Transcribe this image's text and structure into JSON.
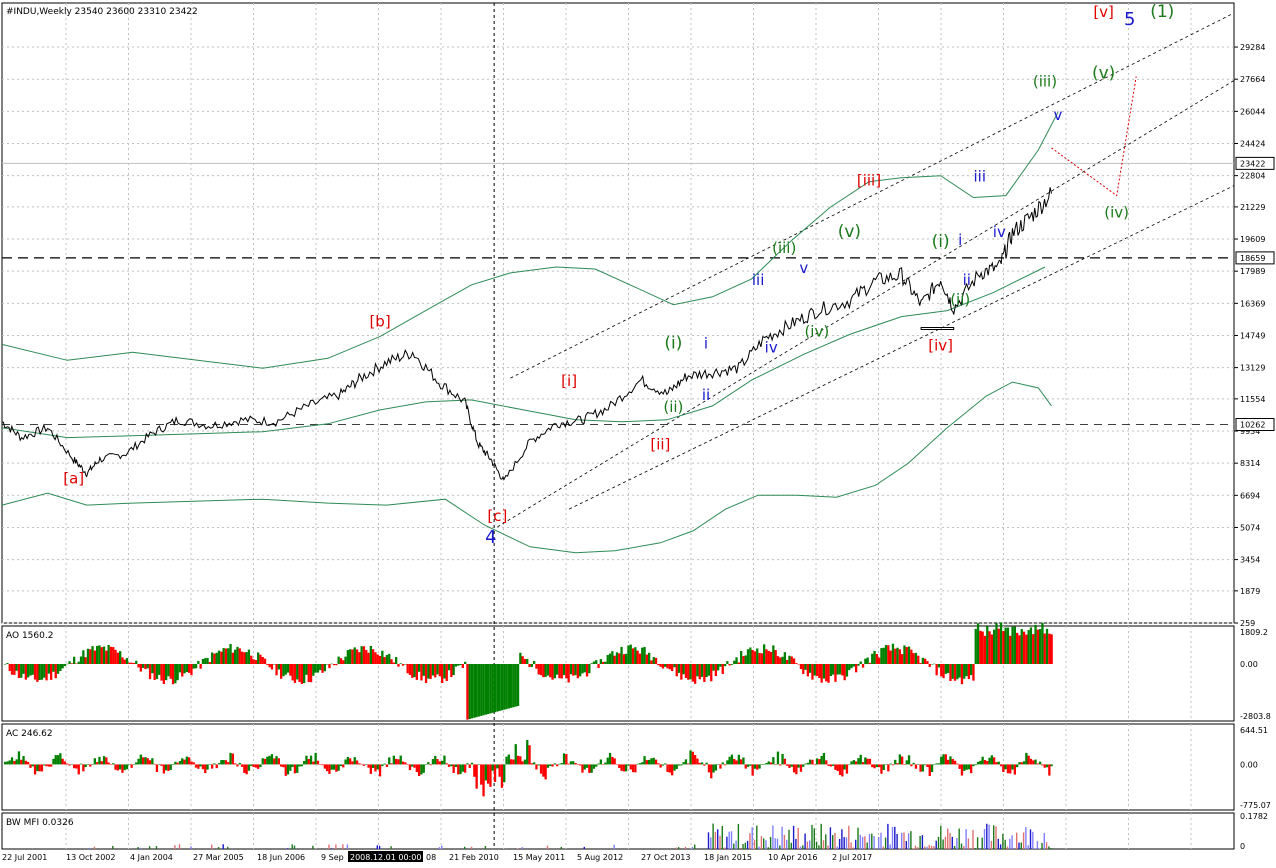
{
  "chart_data": [
    {
      "type": "line",
      "panel": "main",
      "symbol_header": "#INDU,Weekly  23540 23600 23310 23422",
      "scale": "log",
      "ylim": [
        259,
        32000
      ],
      "y_ticks": [
        "29284",
        "27664",
        "26044",
        "24424",
        "22804",
        "21229",
        "19609",
        "17989",
        "16369",
        "14749",
        "13129",
        "11554",
        "9934",
        "8314",
        "6694",
        "5074",
        "3454",
        "1879",
        "259"
      ],
      "price_tags": [
        "23422",
        "18659",
        "10262"
      ],
      "horizontal_levels": [
        18659,
        10262
      ],
      "x_ticks": [
        "22 Jul 2001",
        "13 Oct 2002",
        "4 Jan 2004",
        "27 Mar 2005",
        "18 Jun 2006",
        "9 Sep",
        "2008.12.01 00:00",
        "08",
        "21 Feb 2010",
        "15 May 2011",
        "5 Aug 2012",
        "27 Oct 2013",
        "18 Jan 2015",
        "10 Apr 2016",
        "2 Jul 2017"
      ],
      "crosshair_label": "2008.12.01 00:00",
      "series": [
        {
          "color": "#000000",
          "x": [
            2001.5,
            2001.8,
            2002.2,
            2002.6,
            2002.8,
            2003.0,
            2003.4,
            2003.8,
            2004.2,
            2004.7,
            2005.2,
            2005.7,
            2006.2,
            2006.7,
            2007.0,
            2007.4,
            2007.8,
            2008.2,
            2008.6,
            2008.8,
            2009.0,
            2009.2,
            2009.6,
            2010.0,
            2010.4,
            2010.8,
            2011.3,
            2011.7,
            2012.0,
            2012.4,
            2012.8,
            2013.2,
            2013.6,
            2014.0,
            2014.5,
            2014.9,
            2015.3,
            2015.6,
            2015.9,
            2016.1,
            2016.5,
            2016.8,
            2017.0,
            2017.3,
            2017.6
          ],
          "values": [
            10400,
            9600,
            10100,
            8500,
            7800,
            8500,
            8800,
            9800,
            10500,
            10200,
            10500,
            10400,
            11200,
            11800,
            12600,
            13400,
            13900,
            12400,
            11400,
            9300,
            8500,
            7400,
            9400,
            10300,
            10500,
            11100,
            12500,
            11800,
            12700,
            12900,
            13100,
            14600,
            15300,
            16000,
            16500,
            17500,
            17800,
            16300,
            17600,
            16100,
            17900,
            18200,
            19900,
            20800,
            21900
          ]
        }
      ],
      "wave_labels": [
        {
          "text": "[a]",
          "x": 2002.6,
          "y": 7300,
          "color": "#e00000"
        },
        {
          "text": "[b]",
          "x": 2007.3,
          "y": 15200,
          "color": "#e00000"
        },
        {
          "text": "[c]",
          "x": 2009.1,
          "y": 5400,
          "color": "#e00000"
        },
        {
          "text": "4",
          "x": 2009.0,
          "y": 4300,
          "color": "#1a1acc"
        },
        {
          "text": "[i]",
          "x": 2010.2,
          "y": 12200,
          "color": "#e00000"
        },
        {
          "text": "[ii]",
          "x": 2011.6,
          "y": 9000,
          "color": "#e00000"
        },
        {
          "text": "[iii]",
          "x": 2014.8,
          "y": 22300,
          "color": "#e00000"
        },
        {
          "text": "[iv]",
          "x": 2015.9,
          "y": 14000,
          "color": "#e00000"
        },
        {
          "text": "[v]",
          "x": 2018.4,
          "y": 30800,
          "color": "#e00000"
        },
        {
          "text": "5",
          "x": 2018.8,
          "y": 30400,
          "color": "#1a1acc"
        },
        {
          "text": "(1)",
          "x": 2019.3,
          "y": 30800,
          "color": "#1a7a1a"
        },
        {
          "text": "(i)",
          "x": 2011.8,
          "y": 14100,
          "color": "#1a7a1a"
        },
        {
          "text": "i",
          "x": 2012.3,
          "y": 14100,
          "color": "#1a1acc"
        },
        {
          "text": "(ii)",
          "x": 2011.8,
          "y": 10900,
          "color": "#1a7a1a"
        },
        {
          "text": "ii",
          "x": 2012.3,
          "y": 11500,
          "color": "#1a1acc"
        },
        {
          "text": "iii",
          "x": 2013.1,
          "y": 17300,
          "color": "#1a1acc"
        },
        {
          "text": "iv",
          "x": 2013.3,
          "y": 13900,
          "color": "#1a1acc"
        },
        {
          "text": "v",
          "x": 2013.8,
          "y": 17900,
          "color": "#1a1acc"
        },
        {
          "text": "(iii)",
          "x": 2013.5,
          "y": 18900,
          "color": "#1a7a1a"
        },
        {
          "text": "(iv)",
          "x": 2014.0,
          "y": 14700,
          "color": "#1a7a1a"
        },
        {
          "text": "(v)",
          "x": 2014.5,
          "y": 19700,
          "color": "#1a7a1a"
        },
        {
          "text": "(i)",
          "x": 2015.9,
          "y": 19200,
          "color": "#1a7a1a"
        },
        {
          "text": "i",
          "x": 2016.2,
          "y": 19300,
          "color": "#1a1acc"
        },
        {
          "text": "(ii)",
          "x": 2016.2,
          "y": 16300,
          "color": "#1a7a1a"
        },
        {
          "text": "ii",
          "x": 2016.3,
          "y": 17300,
          "color": "#1a1acc"
        },
        {
          "text": "iii",
          "x": 2016.5,
          "y": 22500,
          "color": "#1a1acc"
        },
        {
          "text": "iv",
          "x": 2016.8,
          "y": 19700,
          "color": "#1a1acc"
        },
        {
          "text": "(iii)",
          "x": 2017.5,
          "y": 27300,
          "color": "#1a7a1a"
        },
        {
          "text": "v",
          "x": 2017.7,
          "y": 25600,
          "color": "#1a1acc"
        },
        {
          "text": "(v)",
          "x": 2018.4,
          "y": 27700,
          "color": "#1a7a1a"
        },
        {
          "text": "(iv)",
          "x": 2018.6,
          "y": 20700,
          "color": "#1a7a1a"
        }
      ]
    },
    {
      "type": "bar",
      "panel": "AO",
      "header": "AO 1560.2",
      "y_ticks": [
        "1809.2",
        "0.00",
        "-2803.8"
      ],
      "ylim": [
        -2803.8,
        1809.2
      ],
      "colors": {
        "up": "#008000",
        "down": "#ff0000"
      }
    },
    {
      "type": "bar",
      "panel": "AC",
      "header": "AC 246.62",
      "y_ticks": [
        "644.51",
        "0.00",
        "-775.07"
      ],
      "ylim": [
        -775.07,
        644.51
      ],
      "colors": {
        "up": "#008000",
        "down": "#ff0000"
      }
    },
    {
      "type": "bar",
      "panel": "BW MFI",
      "header": "BW MFI 0.0326",
      "y_ticks": [
        "0.1782",
        "0"
      ],
      "ylim": [
        0,
        0.1782
      ]
    }
  ]
}
